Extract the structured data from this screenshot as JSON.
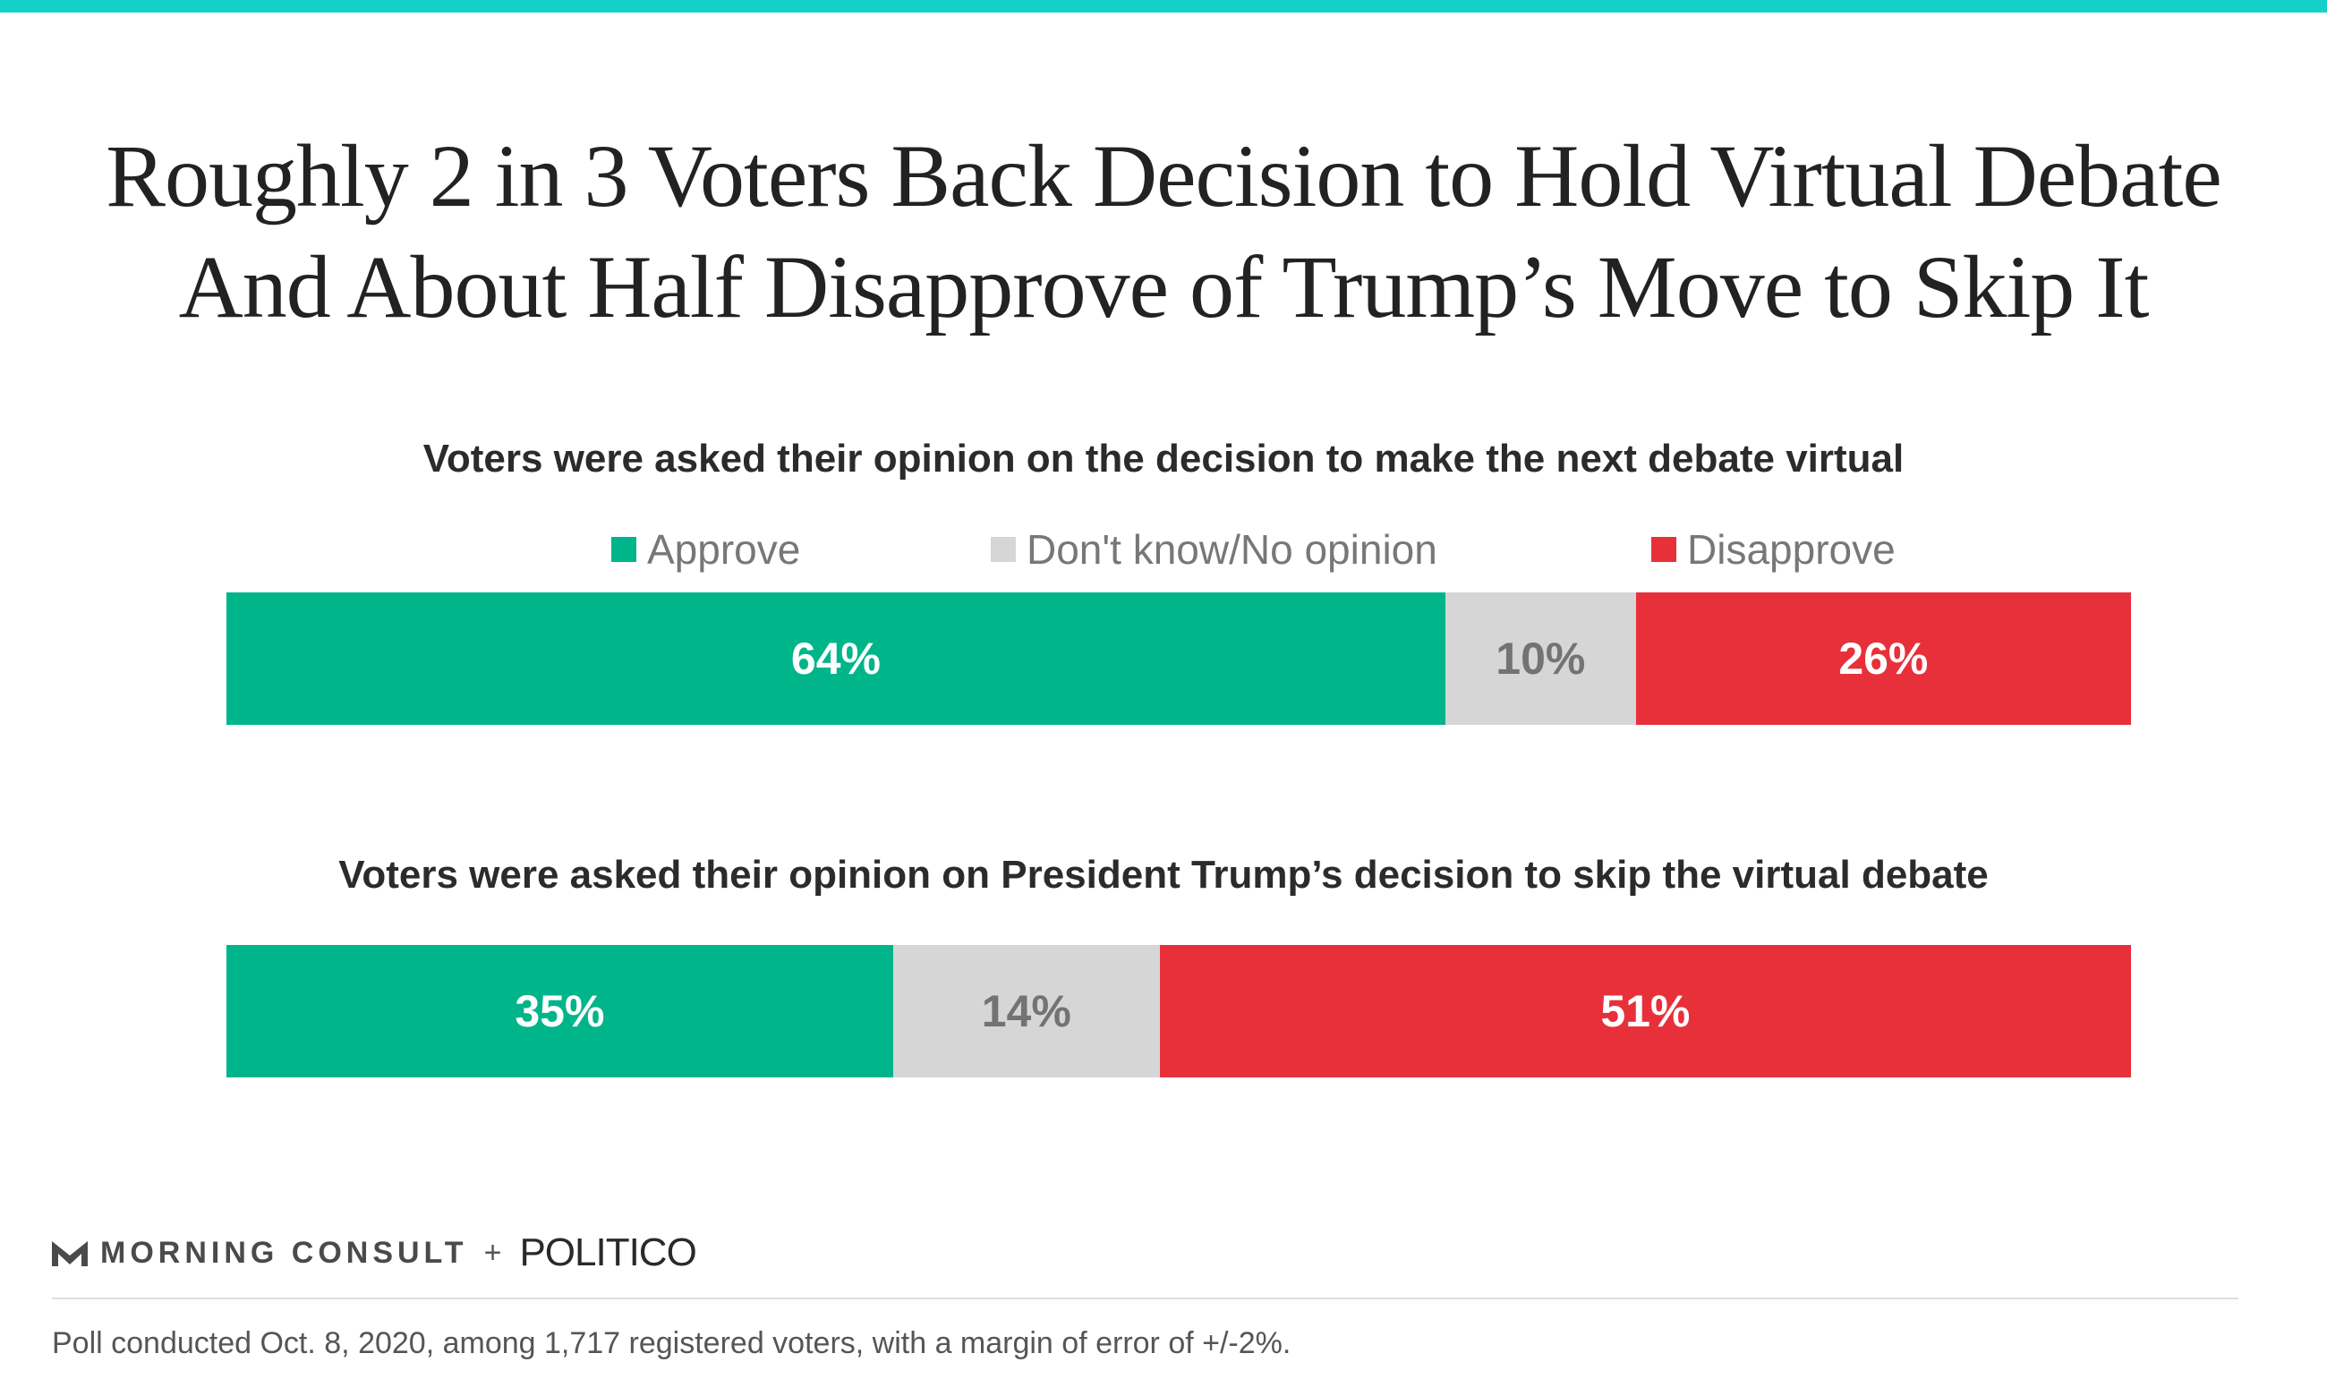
{
  "title": {
    "line1": "Roughly 2 in 3 Voters Back Decision to Hold Virtual Debate",
    "line2": "And About Half Disapprove of Trump’s Move to Skip It"
  },
  "legend": [
    {
      "label": "Approve",
      "color": "#00b58a"
    },
    {
      "label": "Don't know/No opinion",
      "color": "#d6d6d6"
    },
    {
      "label": "Disapprove",
      "color": "#e8303a"
    }
  ],
  "chart_data": {
    "type": "bar",
    "orientation": "horizontal-stacked-100",
    "categories": [
      "Voters were asked their opinion on the decision to make the next debate virtual",
      "Voters were asked their opinion on President Trump’s decision to skip the virtual debate"
    ],
    "series": [
      {
        "name": "Approve",
        "values": [
          64,
          35
        ],
        "color": "#00b58a"
      },
      {
        "name": "Don't know/No opinion",
        "values": [
          10,
          14
        ],
        "color": "#d6d6d6"
      },
      {
        "name": "Disapprove",
        "values": [
          26,
          51
        ],
        "color": "#e8303a"
      }
    ],
    "data_labels": [
      [
        "64%",
        "10%",
        "26%"
      ],
      [
        "35%",
        "14%",
        "51%"
      ]
    ],
    "label_colors": [
      "#ffffff",
      "#737373",
      "#ffffff"
    ],
    "xlim": [
      0,
      100
    ],
    "legend_position": "top"
  },
  "footer": {
    "brand1": "MORNING CONSULT",
    "plus": "+",
    "brand2": "POLITICO",
    "note": "Poll conducted Oct. 8, 2020, among 1,717 registered voters, with a margin of error of +/-2%."
  }
}
